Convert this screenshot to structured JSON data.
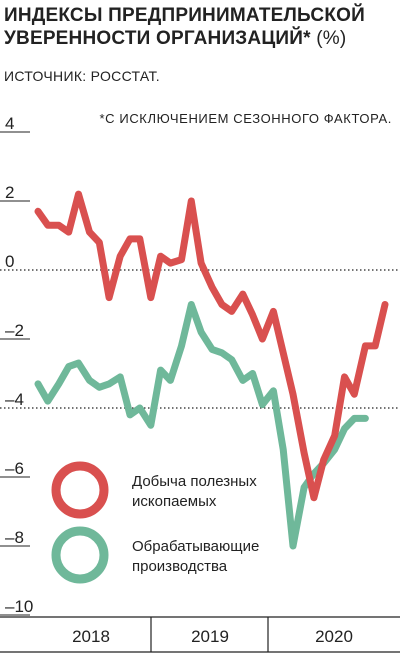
{
  "header": {
    "title": "ИНДЕКСЫ ПРЕДПРИНИМАТЕЛЬСКОЙ УВЕРЕННОСТИ ОРГАНИЗАЦИЙ*",
    "title_unit": "(%)",
    "source": "ИСТОЧНИК: РОССТАТ.",
    "footnote": "*С ИСКЛЮЧЕНИЕМ СЕЗОННОГО ФАКТОРА."
  },
  "colors": {
    "mining": "#d9504f",
    "manufacturing": "#6fb89a",
    "text": "#222222"
  },
  "chart_data": {
    "type": "line",
    "ylim": [
      -10,
      4
    ],
    "yticks": [
      {
        "value": 4,
        "label": "4"
      },
      {
        "value": 2,
        "label": "2"
      },
      {
        "value": 0,
        "label": "0"
      },
      {
        "value": -2,
        "label": "–2"
      },
      {
        "value": -4,
        "label": "–4"
      },
      {
        "value": -6,
        "label": "–6"
      },
      {
        "value": -8,
        "label": "–8"
      },
      {
        "value": -10,
        "label": "–10"
      }
    ],
    "dotted_gridlines": [
      0,
      -4
    ],
    "years": [
      "2018",
      "2019",
      "2020"
    ],
    "legend": {
      "placement": "bottom-left"
    },
    "series": [
      {
        "name": "Добыча полезных ископаемых",
        "legend_lines": [
          "Добыча полезных",
          "ископаемых"
        ],
        "color": "#d9504f",
        "points": [
          {
            "x": 2018.0,
            "y": 1.7
          },
          {
            "x": 2018.08,
            "y": 1.3
          },
          {
            "x": 2018.17,
            "y": 1.3
          },
          {
            "x": 2018.25,
            "y": 1.1
          },
          {
            "x": 2018.33,
            "y": 2.2
          },
          {
            "x": 2018.42,
            "y": 1.1
          },
          {
            "x": 2018.5,
            "y": 0.8
          },
          {
            "x": 2018.58,
            "y": -0.8
          },
          {
            "x": 2018.67,
            "y": 0.4
          },
          {
            "x": 2018.75,
            "y": 0.9
          },
          {
            "x": 2018.83,
            "y": 0.9
          },
          {
            "x": 2018.92,
            "y": -0.8
          },
          {
            "x": 2019.0,
            "y": 0.4
          },
          {
            "x": 2019.08,
            "y": 0.2
          },
          {
            "x": 2019.17,
            "y": 0.3
          },
          {
            "x": 2019.25,
            "y": 2.0
          },
          {
            "x": 2019.33,
            "y": 0.2
          },
          {
            "x": 2019.42,
            "y": -0.5
          },
          {
            "x": 2019.5,
            "y": -1.0
          },
          {
            "x": 2019.58,
            "y": -1.2
          },
          {
            "x": 2019.67,
            "y": -0.7
          },
          {
            "x": 2019.75,
            "y": -1.3
          },
          {
            "x": 2019.83,
            "y": -2.0
          },
          {
            "x": 2019.92,
            "y": -1.2
          },
          {
            "x": 2020.0,
            "y": -2.4
          },
          {
            "x": 2020.08,
            "y": -3.6
          },
          {
            "x": 2020.17,
            "y": -5.3
          },
          {
            "x": 2020.25,
            "y": -6.6
          },
          {
            "x": 2020.33,
            "y": -5.5
          },
          {
            "x": 2020.42,
            "y": -4.8
          },
          {
            "x": 2020.5,
            "y": -3.1
          },
          {
            "x": 2020.58,
            "y": -3.6
          },
          {
            "x": 2020.67,
            "y": -2.2
          },
          {
            "x": 2020.75,
            "y": -2.2
          },
          {
            "x": 2020.83,
            "y": -1.0
          }
        ]
      },
      {
        "name": "Обрабатывающие производства",
        "legend_lines": [
          "Обрабатывающие",
          "производства"
        ],
        "color": "#6fb89a",
        "points": [
          {
            "x": 2018.0,
            "y": -3.3
          },
          {
            "x": 2018.08,
            "y": -3.8
          },
          {
            "x": 2018.17,
            "y": -3.3
          },
          {
            "x": 2018.25,
            "y": -2.8
          },
          {
            "x": 2018.33,
            "y": -2.7
          },
          {
            "x": 2018.42,
            "y": -3.2
          },
          {
            "x": 2018.5,
            "y": -3.4
          },
          {
            "x": 2018.58,
            "y": -3.3
          },
          {
            "x": 2018.67,
            "y": -3.1
          },
          {
            "x": 2018.75,
            "y": -4.2
          },
          {
            "x": 2018.83,
            "y": -4.0
          },
          {
            "x": 2018.92,
            "y": -4.5
          },
          {
            "x": 2019.0,
            "y": -2.9
          },
          {
            "x": 2019.08,
            "y": -3.2
          },
          {
            "x": 2019.17,
            "y": -2.2
          },
          {
            "x": 2019.25,
            "y": -1.0
          },
          {
            "x": 2019.33,
            "y": -1.8
          },
          {
            "x": 2019.42,
            "y": -2.3
          },
          {
            "x": 2019.5,
            "y": -2.4
          },
          {
            "x": 2019.58,
            "y": -2.6
          },
          {
            "x": 2019.67,
            "y": -3.2
          },
          {
            "x": 2019.75,
            "y": -3.0
          },
          {
            "x": 2019.83,
            "y": -3.9
          },
          {
            "x": 2019.92,
            "y": -3.5
          },
          {
            "x": 2020.0,
            "y": -5.2
          },
          {
            "x": 2020.08,
            "y": -8.0
          },
          {
            "x": 2020.17,
            "y": -6.3
          },
          {
            "x": 2020.25,
            "y": -5.9
          },
          {
            "x": 2020.33,
            "y": -5.6
          },
          {
            "x": 2020.42,
            "y": -5.2
          },
          {
            "x": 2020.5,
            "y": -4.6
          },
          {
            "x": 2020.58,
            "y": -4.3
          },
          {
            "x": 2020.67,
            "y": -4.3
          }
        ]
      }
    ]
  }
}
